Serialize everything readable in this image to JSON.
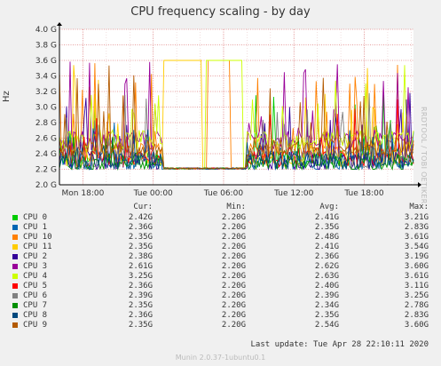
{
  "title": "CPU frequency scaling - by day",
  "side_text": "RRDTOOL / TOBI OETIKER",
  "footer": "Last update: Tue Apr 28 22:10:11 2020",
  "munin": "Munin 2.0.37-1ubuntu0.1",
  "legend_header": {
    "cur": "Cur:",
    "min": "Min:",
    "avg": "Avg:",
    "max": "Max:"
  },
  "chart_data": {
    "type": "line",
    "title": "CPU frequency scaling - by day",
    "ylabel": "Hz",
    "xlabel": "",
    "ylim": [
      2.0,
      4.0
    ],
    "y_ticks": [
      "2.0 G",
      "2.2 G",
      "2.4 G",
      "2.6 G",
      "2.8 G",
      "3.0 G",
      "3.2 G",
      "3.4 G",
      "3.6 G",
      "3.8 G",
      "4.0 G"
    ],
    "x_ticks": [
      "Mon 18:00",
      "Tue 00:00",
      "Tue 06:00",
      "Tue 12:00",
      "Tue 18:00"
    ],
    "x_range_hours": [
      -8,
      22.2
    ],
    "grid": true,
    "series": [
      {
        "name": "CPU 0",
        "color": "#00cc00",
        "cur": "2.42G",
        "min": "2.20G",
        "avg": "2.41G",
        "max": "3.21G"
      },
      {
        "name": "CPU 1",
        "color": "#0066b3",
        "cur": "2.36G",
        "min": "2.20G",
        "avg": "2.35G",
        "max": "2.83G"
      },
      {
        "name": "CPU 10",
        "color": "#ff8000",
        "cur": "2.35G",
        "min": "2.20G",
        "avg": "2.48G",
        "max": "3.61G"
      },
      {
        "name": "CPU 11",
        "color": "#ffcc00",
        "cur": "2.35G",
        "min": "2.20G",
        "avg": "2.41G",
        "max": "3.54G"
      },
      {
        "name": "CPU 2",
        "color": "#330099",
        "cur": "2.38G",
        "min": "2.20G",
        "avg": "2.36G",
        "max": "3.19G"
      },
      {
        "name": "CPU 3",
        "color": "#990099",
        "cur": "2.61G",
        "min": "2.20G",
        "avg": "2.62G",
        "max": "3.60G"
      },
      {
        "name": "CPU 4",
        "color": "#ccff00",
        "cur": "3.25G",
        "min": "2.20G",
        "avg": "2.63G",
        "max": "3.61G"
      },
      {
        "name": "CPU 5",
        "color": "#ff0000",
        "cur": "2.36G",
        "min": "2.20G",
        "avg": "2.40G",
        "max": "3.11G"
      },
      {
        "name": "CPU 6",
        "color": "#808080",
        "cur": "2.39G",
        "min": "2.20G",
        "avg": "2.39G",
        "max": "3.25G"
      },
      {
        "name": "CPU 7",
        "color": "#008f00",
        "cur": "2.35G",
        "min": "2.20G",
        "avg": "2.34G",
        "max": "2.78G"
      },
      {
        "name": "CPU 8",
        "color": "#00487d",
        "cur": "2.36G",
        "min": "2.20G",
        "avg": "2.35G",
        "max": "2.83G"
      },
      {
        "name": "CPU 9",
        "color": "#b35a00",
        "cur": "2.35G",
        "min": "2.20G",
        "avg": "2.54G",
        "max": "3.60G"
      }
    ]
  }
}
